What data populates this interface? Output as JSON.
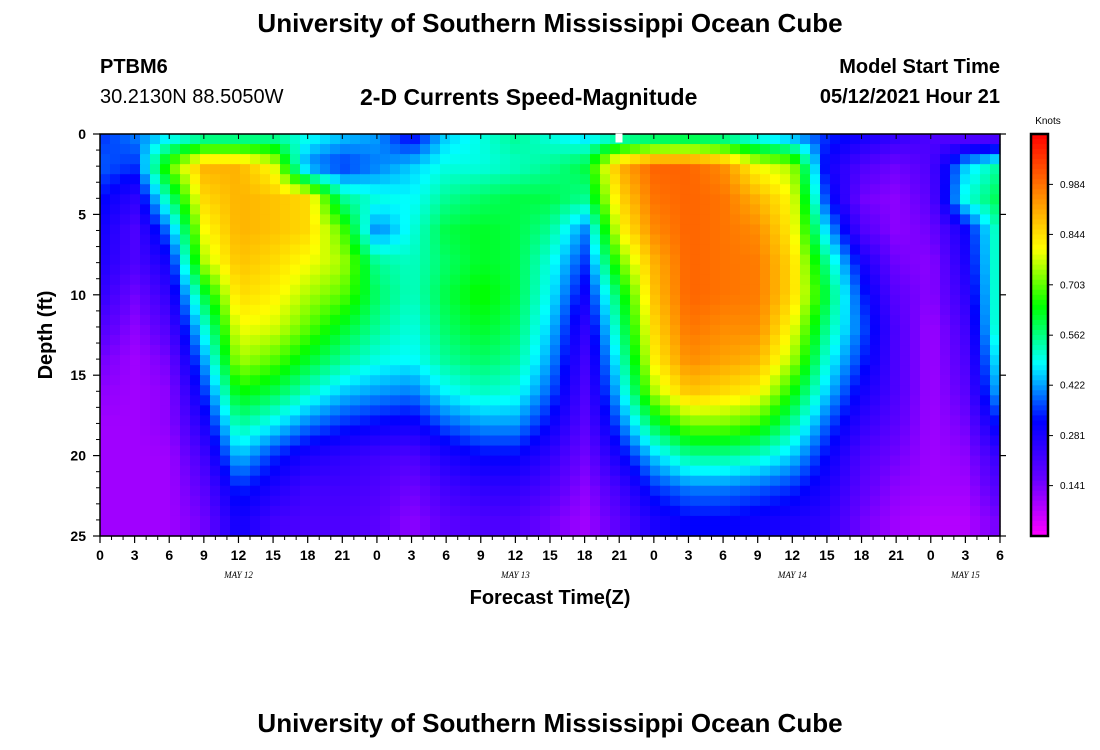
{
  "header": {
    "title": "University of Southern Mississippi Ocean Cube",
    "station": "PTBM6",
    "coords": "30.2130N  88.5050W",
    "plot_title": "2-D Currents Speed-Magnitude",
    "model_label": "Model Start Time",
    "model_time": "05/12/2021 Hour 21"
  },
  "footer": {
    "title": "University of Southern Mississippi Ocean Cube"
  },
  "chart_data": {
    "type": "heatmap",
    "title": "2-D Currents Speed-Magnitude",
    "xlabel": "Forecast Time(Z)",
    "ylabel": "Depth (ft)",
    "x_tick_labels": [
      "0",
      "3",
      "6",
      "9",
      "12",
      "15",
      "18",
      "21",
      "0",
      "3",
      "6",
      "9",
      "12",
      "15",
      "18",
      "21",
      "0",
      "3",
      "6",
      "9",
      "12",
      "15",
      "18",
      "21",
      "0",
      "3",
      "6"
    ],
    "x_range_hours": [
      0,
      78
    ],
    "day_labels": [
      {
        "label": "MAY 12",
        "hour": 12
      },
      {
        "label": "MAY 13",
        "hour": 36
      },
      {
        "label": "MAY 14",
        "hour": 60
      },
      {
        "label": "MAY 15",
        "hour": 75
      }
    ],
    "y_ticks": [
      0,
      5,
      10,
      15,
      20,
      25
    ],
    "ylim": [
      25,
      0
    ],
    "colorbar": {
      "unit": "Knots",
      "ticks": [
        0.984,
        0.844,
        0.703,
        0.562,
        0.422,
        0.281,
        0.141
      ],
      "range": [
        0.0,
        1.125
      ]
    },
    "colormap": [
      "#ff00ff",
      "#6600ff",
      "#0000ff",
      "#00ffff",
      "#00ff00",
      "#ffff00",
      "#ff8000",
      "#ff0000"
    ],
    "depth_levels_ft": [
      0,
      2,
      4,
      6,
      8,
      10,
      12,
      14,
      16,
      18,
      20,
      22,
      24
    ],
    "time_hours": [
      0,
      3,
      6,
      9,
      12,
      15,
      18,
      21,
      24,
      27,
      30,
      33,
      36,
      39,
      42,
      45,
      48,
      51,
      54,
      57,
      60,
      63,
      66,
      69,
      72,
      75,
      78
    ],
    "speed_knots": [
      [
        0.35,
        0.4,
        0.45,
        0.5,
        0.5,
        0.52,
        0.5,
        0.45,
        0.42,
        0.3,
        0.45,
        0.5,
        0.55,
        0.5,
        0.45,
        0.48,
        0.5,
        0.52,
        0.5,
        0.45,
        0.4,
        0.35,
        0.3,
        0.25,
        0.2,
        0.15,
        0.15
      ],
      [
        0.38,
        0.35,
        0.7,
        0.9,
        0.9,
        0.8,
        0.4,
        0.35,
        0.4,
        0.45,
        0.5,
        0.5,
        0.52,
        0.55,
        0.6,
        0.9,
        1.0,
        1.0,
        0.95,
        0.8,
        0.75,
        0.3,
        0.2,
        0.15,
        0.2,
        0.45,
        0.55
      ],
      [
        0.33,
        0.25,
        0.55,
        0.85,
        0.9,
        0.88,
        0.85,
        0.55,
        0.5,
        0.48,
        0.55,
        0.58,
        0.6,
        0.6,
        0.55,
        0.85,
        0.98,
        1.0,
        0.98,
        0.9,
        0.8,
        0.35,
        0.15,
        0.12,
        0.18,
        0.5,
        0.6
      ],
      [
        0.3,
        0.2,
        0.4,
        0.8,
        0.9,
        0.88,
        0.85,
        0.7,
        0.4,
        0.5,
        0.6,
        0.62,
        0.6,
        0.55,
        0.4,
        0.8,
        0.95,
        1.0,
        0.98,
        0.95,
        0.82,
        0.45,
        0.2,
        0.12,
        0.15,
        0.3,
        0.55
      ],
      [
        0.28,
        0.2,
        0.3,
        0.75,
        0.88,
        0.85,
        0.8,
        0.75,
        0.55,
        0.52,
        0.58,
        0.62,
        0.6,
        0.5,
        0.35,
        0.7,
        0.9,
        1.0,
        0.98,
        0.97,
        0.85,
        0.55,
        0.3,
        0.15,
        0.12,
        0.28,
        0.55
      ],
      [
        0.25,
        0.15,
        0.25,
        0.6,
        0.85,
        0.82,
        0.75,
        0.7,
        0.58,
        0.52,
        0.6,
        0.65,
        0.6,
        0.48,
        0.3,
        0.6,
        0.88,
        1.0,
        0.98,
        0.97,
        0.85,
        0.6,
        0.35,
        0.18,
        0.12,
        0.25,
        0.55
      ],
      [
        0.2,
        0.12,
        0.2,
        0.5,
        0.8,
        0.78,
        0.7,
        0.62,
        0.55,
        0.5,
        0.58,
        0.62,
        0.58,
        0.45,
        0.25,
        0.55,
        0.85,
        0.98,
        0.95,
        0.95,
        0.8,
        0.55,
        0.38,
        0.2,
        0.1,
        0.22,
        0.55
      ],
      [
        0.15,
        0.1,
        0.15,
        0.42,
        0.75,
        0.7,
        0.62,
        0.55,
        0.5,
        0.48,
        0.55,
        0.58,
        0.55,
        0.42,
        0.22,
        0.5,
        0.82,
        0.95,
        0.92,
        0.9,
        0.75,
        0.5,
        0.35,
        0.2,
        0.1,
        0.2,
        0.5
      ],
      [
        0.12,
        0.1,
        0.12,
        0.35,
        0.65,
        0.6,
        0.52,
        0.45,
        0.42,
        0.4,
        0.48,
        0.52,
        0.5,
        0.38,
        0.2,
        0.45,
        0.75,
        0.88,
        0.85,
        0.82,
        0.65,
        0.45,
        0.3,
        0.2,
        0.1,
        0.18,
        0.45
      ],
      [
        0.1,
        0.1,
        0.12,
        0.28,
        0.55,
        0.48,
        0.4,
        0.35,
        0.32,
        0.3,
        0.38,
        0.42,
        0.42,
        0.32,
        0.18,
        0.38,
        0.6,
        0.72,
        0.72,
        0.68,
        0.55,
        0.38,
        0.25,
        0.18,
        0.1,
        0.15,
        0.35
      ],
      [
        0.1,
        0.1,
        0.1,
        0.22,
        0.45,
        0.35,
        0.28,
        0.25,
        0.22,
        0.2,
        0.28,
        0.32,
        0.32,
        0.25,
        0.15,
        0.3,
        0.45,
        0.55,
        0.55,
        0.52,
        0.45,
        0.32,
        0.2,
        0.15,
        0.1,
        0.12,
        0.25
      ],
      [
        0.1,
        0.1,
        0.1,
        0.18,
        0.35,
        0.28,
        0.22,
        0.22,
        0.2,
        0.15,
        0.22,
        0.25,
        0.25,
        0.2,
        0.12,
        0.22,
        0.35,
        0.4,
        0.4,
        0.38,
        0.35,
        0.28,
        0.18,
        0.12,
        0.1,
        0.1,
        0.2
      ],
      [
        0.1,
        0.1,
        0.1,
        0.15,
        0.3,
        0.22,
        0.2,
        0.2,
        0.18,
        0.12,
        0.18,
        0.2,
        0.2,
        0.15,
        0.1,
        0.18,
        0.28,
        0.32,
        0.32,
        0.3,
        0.28,
        0.25,
        0.15,
        0.1,
        0.08,
        0.08,
        0.15
      ]
    ]
  }
}
